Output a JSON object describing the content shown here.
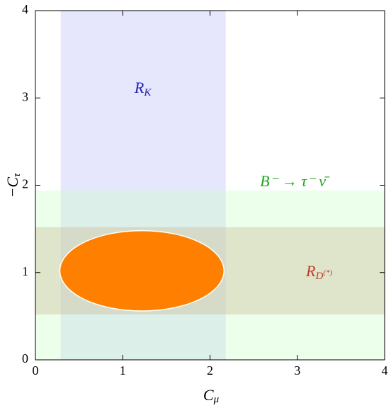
{
  "chart_data": {
    "type": "region",
    "xlabel": {
      "base": "C",
      "sub": "μ"
    },
    "ylabel": {
      "base": "−C",
      "sub": "τ"
    },
    "xlim": [
      0,
      4
    ],
    "ylim": [
      0,
      4
    ],
    "xticks": [
      0,
      1,
      2,
      3,
      4
    ],
    "yticks": [
      0,
      1,
      2,
      3,
      4
    ],
    "bands": [
      {
        "label": {
          "base": "R",
          "sub": "K"
        },
        "x": [
          0.29,
          2.18
        ],
        "y": [
          0,
          4
        ],
        "color": "#d6d6fa",
        "opacity": 0.6,
        "text_color": "#2323b4",
        "at": [
          1.23,
          3.1
        ]
      },
      {
        "label": {
          "base": "B⁻ → τ⁻ ν̄"
        },
        "x": [
          0,
          4
        ],
        "y": [
          0,
          1.94
        ],
        "color": "#ccffcc",
        "opacity": 0.4,
        "text_color": "#22a322",
        "at": [
          2.95,
          2.03
        ]
      },
      {
        "label": {
          "base": "R",
          "sub": "D",
          "sup": "(*)"
        },
        "x": [
          0,
          4
        ],
        "y": [
          0.52,
          1.52
        ],
        "color": "#c8b48c",
        "opacity": 0.35,
        "text_color": "#c0392b",
        "at": [
          3.25,
          1.0
        ]
      }
    ],
    "ellipse": {
      "cx": 1.22,
      "cy": 1.02,
      "rx": 0.94,
      "ry": 0.46,
      "color": "#ff8000"
    }
  }
}
